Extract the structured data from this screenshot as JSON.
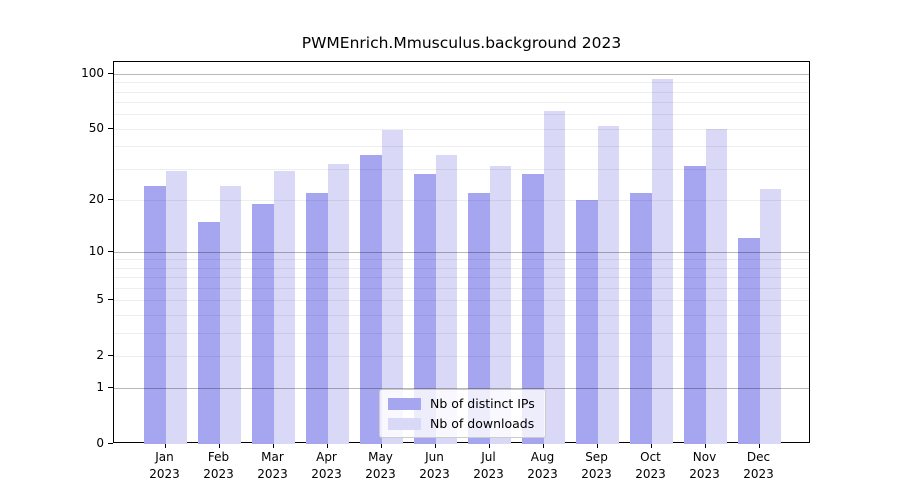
{
  "title": "PWMEnrich.Mmusculus.background 2023",
  "chart_data": {
    "type": "bar",
    "title": "PWMEnrich.Mmusculus.background 2023",
    "xlabel": "",
    "ylabel": "",
    "yscale": "log1p",
    "ymax": 116.4,
    "yticks": [
      0,
      1,
      2,
      5,
      10,
      20,
      50,
      100
    ],
    "grid": {
      "on": true,
      "major": [
        1,
        10,
        100
      ],
      "minor": [
        2,
        3,
        4,
        5,
        6,
        7,
        8,
        9,
        20,
        30,
        40,
        50,
        60,
        70,
        80,
        90
      ]
    },
    "categories": [
      "Jan",
      "Feb",
      "Mar",
      "Apr",
      "May",
      "Jun",
      "Jul",
      "Aug",
      "Sep",
      "Oct",
      "Nov",
      "Dec"
    ],
    "category_year": "2023",
    "legend_position": "lower center",
    "series": [
      {
        "name": "Nb of distinct IPs",
        "color": "#a6a6f0",
        "values": [
          24,
          15,
          19,
          22,
          36,
          28,
          22,
          28,
          20,
          22,
          31,
          12
        ]
      },
      {
        "name": "Nb of downloads",
        "color": "#d9d9f7",
        "values": [
          29,
          24,
          29,
          32,
          49,
          36,
          31,
          63,
          52,
          94,
          50,
          23
        ]
      }
    ]
  }
}
